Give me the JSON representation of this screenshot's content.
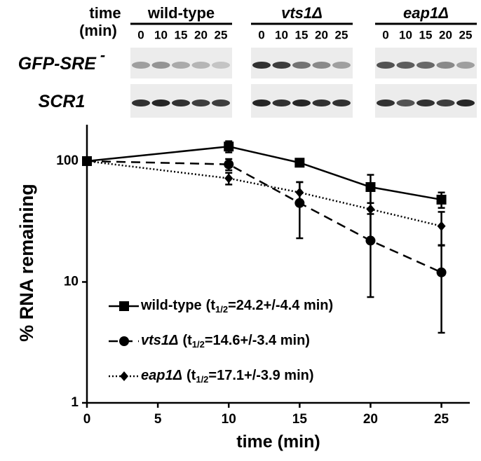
{
  "blot": {
    "time_label": "time",
    "time_unit": "(min)",
    "strains": [
      {
        "name": "wild-type",
        "italic": false,
        "lanes": [
          0,
          10,
          15,
          20,
          25
        ]
      },
      {
        "name": "vts1Δ",
        "italic": true,
        "lanes": [
          0,
          10,
          15,
          20,
          25
        ]
      },
      {
        "name": "eap1Δ",
        "italic": true,
        "lanes": [
          0,
          10,
          15,
          20,
          25
        ]
      }
    ],
    "rows": [
      {
        "label": "GFP-SRE",
        "sup": "-"
      },
      {
        "label": "SCR1"
      }
    ]
  },
  "chart_data": {
    "type": "line",
    "xlabel": "time (min)",
    "ylabel": "% RNA remaining",
    "xlim": [
      0,
      27
    ],
    "xticks": [
      0,
      5,
      10,
      15,
      20,
      25
    ],
    "ylim": [
      1,
      200
    ],
    "yticks": [
      1,
      10,
      100
    ],
    "ylog": true,
    "x": [
      0,
      10,
      15,
      20,
      25
    ],
    "series": [
      {
        "name": "wild-type",
        "italic": false,
        "color": "#000000",
        "dash": "solid",
        "marker": "square",
        "half_life": {
          "prefix": "(t",
          "sub": "1/2",
          "rest": "=24.2+/-4.4 min)"
        },
        "values": [
          100,
          132,
          97,
          61,
          48
        ],
        "errors": [
          0,
          14,
          3,
          16,
          7
        ]
      },
      {
        "name": "vts1Δ",
        "italic": true,
        "color": "#000000",
        "dash": "dashed",
        "marker": "circle",
        "half_life": {
          "prefix": "(t",
          "sub": "1/2",
          "rest": "=14.6+/-3.4 min)"
        },
        "values": [
          100,
          94,
          45,
          22,
          12
        ],
        "errors": [
          0,
          10,
          22,
          14.5,
          8.2
        ]
      },
      {
        "name": "eap1Δ",
        "italic": true,
        "color": "#000000",
        "dash": "dotted",
        "marker": "diamond",
        "half_life": {
          "prefix": "(t",
          "sub": "1/2",
          "rest": "=17.1+/-3.9 min)"
        },
        "values": [
          100,
          72,
          55,
          40,
          29
        ],
        "errors": [
          0,
          8,
          12,
          19,
          9
        ]
      }
    ]
  }
}
